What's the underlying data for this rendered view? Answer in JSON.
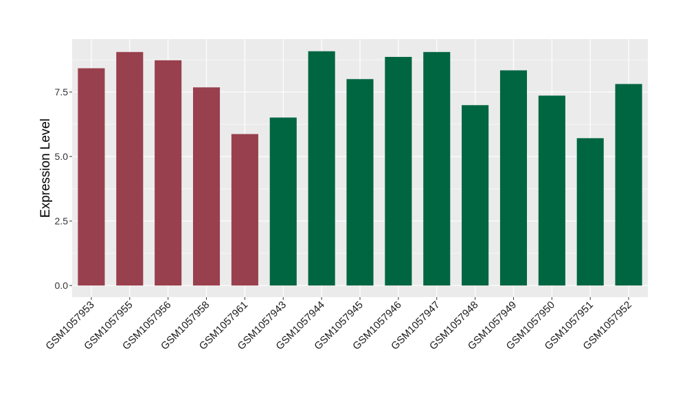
{
  "chart_data": {
    "type": "bar",
    "title": "",
    "xlabel": "",
    "ylabel": "Expression Level",
    "categories": [
      "GSM1057953",
      "GSM1057955",
      "GSM1057956",
      "GSM1057958",
      "GSM1057961",
      "GSM1057943",
      "GSM1057944",
      "GSM1057945",
      "GSM1057946",
      "GSM1057947",
      "GSM1057948",
      "GSM1057949",
      "GSM1057950",
      "GSM1057951",
      "GSM1057952"
    ],
    "values": [
      8.42,
      9.05,
      8.73,
      7.68,
      5.87,
      6.51,
      9.08,
      8.0,
      8.86,
      9.05,
      6.99,
      8.34,
      7.36,
      5.71,
      7.81
    ],
    "group": [
      0,
      0,
      0,
      0,
      0,
      1,
      1,
      1,
      1,
      1,
      1,
      1,
      1,
      1,
      1
    ],
    "group_colors": [
      "#98404E",
      "#006642"
    ],
    "ylim": [
      -0.45,
      9.55
    ],
    "yticks": [
      0.0,
      2.5,
      5.0,
      7.5
    ],
    "ytick_labels": [
      "0.0",
      "2.5",
      "5.0",
      "7.5"
    ],
    "grid": true,
    "panel_background": "#EBEBEB",
    "legend": "none"
  }
}
